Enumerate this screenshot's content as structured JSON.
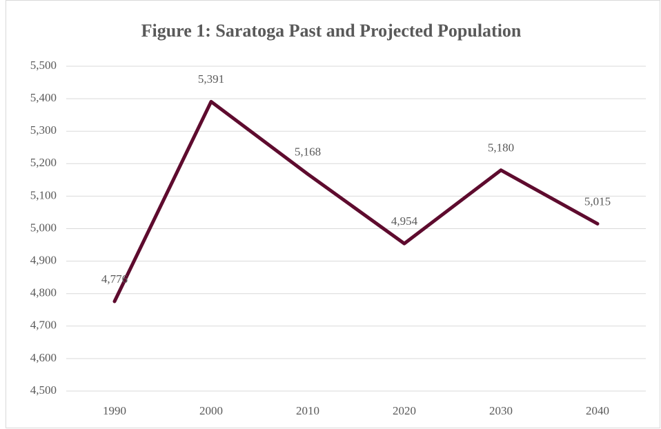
{
  "chart_data": {
    "type": "line",
    "title": "Figure 1: Saratoga Past and Projected Population",
    "categories": [
      "1990",
      "2000",
      "2010",
      "2020",
      "2030",
      "2040"
    ],
    "series": [
      {
        "name": "Population",
        "color": "#5e0b2e",
        "values": [
          4776,
          5391,
          5168,
          4954,
          5180,
          5015
        ],
        "value_labels": [
          "4,776",
          "5,391",
          "5,168",
          "4,954",
          "5,180",
          "5,015"
        ]
      }
    ],
    "ylim": [
      4500,
      5500
    ],
    "yticks": [
      {
        "value": 4500,
        "label": "4,500"
      },
      {
        "value": 4600,
        "label": "4,600"
      },
      {
        "value": 4700,
        "label": "4,700"
      },
      {
        "value": 4800,
        "label": "4,800"
      },
      {
        "value": 4900,
        "label": "4,900"
      },
      {
        "value": 5000,
        "label": "5,000"
      },
      {
        "value": 5100,
        "label": "5,100"
      },
      {
        "value": 5200,
        "label": "5,200"
      },
      {
        "value": 5300,
        "label": "5,300"
      },
      {
        "value": 5400,
        "label": "5,400"
      },
      {
        "value": 5500,
        "label": "5,500"
      }
    ],
    "grid": true
  }
}
